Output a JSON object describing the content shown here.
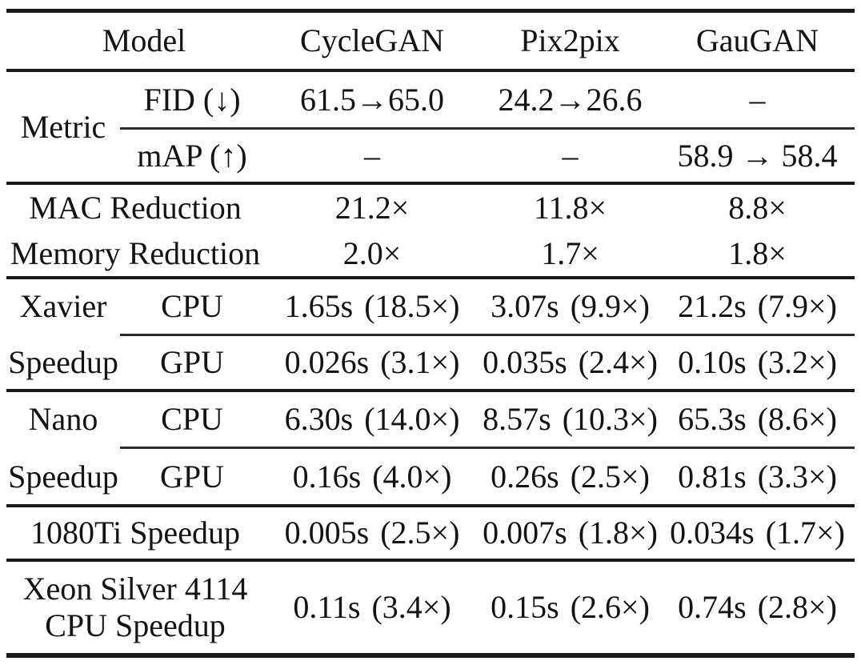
{
  "colors": {
    "text": "#141414",
    "rule_heavy": "#191919",
    "rule_light": "#2b2b2b",
    "background": "#ffffff"
  },
  "table": {
    "header": {
      "model_label": "Model",
      "columns": [
        "CycleGAN",
        "Pix2pix",
        "GauGAN"
      ]
    },
    "metric": {
      "group_label": "Metric",
      "rows": [
        {
          "label": "FID (↓)",
          "cells": [
            "61.5→65.0",
            "24.2→26.6",
            "–"
          ]
        },
        {
          "label": "mAP (↑)",
          "cells": [
            "–",
            "–",
            "58.9 → 58.4"
          ]
        }
      ]
    },
    "reduction": {
      "rows": [
        {
          "label": "MAC Reduction",
          "cells": [
            "21.2×",
            "11.8×",
            "8.8×"
          ]
        },
        {
          "label": "Memory Reduction",
          "cells": [
            "2.0×",
            "1.7×",
            "1.8×"
          ]
        }
      ]
    },
    "xavier": {
      "group_label_top": "Xavier",
      "group_label_bottom": "Speedup",
      "rows": [
        {
          "label": "CPU",
          "cells": [
            [
              "1.65s",
              "(18.5×)"
            ],
            [
              "3.07s",
              "(9.9×)"
            ],
            [
              "21.2s",
              "(7.9×)"
            ]
          ]
        },
        {
          "label": "GPU",
          "cells": [
            [
              "0.026s",
              "(3.1×)"
            ],
            [
              "0.035s",
              "(2.4×)"
            ],
            [
              "0.10s",
              "(3.2×)"
            ]
          ]
        }
      ]
    },
    "nano": {
      "group_label_top": "Nano",
      "group_label_bottom": "Speedup",
      "rows": [
        {
          "label": "CPU",
          "cells": [
            [
              "6.30s",
              "(14.0×)"
            ],
            [
              "8.57s",
              "(10.3×)"
            ],
            [
              "65.3s",
              "(8.6×)"
            ]
          ]
        },
        {
          "label": "GPU",
          "cells": [
            [
              "0.16s",
              "(4.0×)"
            ],
            [
              "0.26s",
              "(2.5×)"
            ],
            [
              "0.81s",
              "(3.3×)"
            ]
          ]
        }
      ]
    },
    "gpu1080ti": {
      "label": "1080Ti Speedup",
      "cells": [
        [
          "0.005s",
          "(2.5×)"
        ],
        [
          "0.007s",
          "(1.8×)"
        ],
        [
          "0.034s",
          "(1.7×)"
        ]
      ]
    },
    "xeon": {
      "label_line1": "Xeon Silver 4114",
      "label_line2": "CPU Speedup",
      "cells": [
        [
          "0.11s",
          "(3.4×)"
        ],
        [
          "0.15s",
          "(2.6×)"
        ],
        [
          "0.74s",
          "(2.8×)"
        ]
      ]
    }
  }
}
